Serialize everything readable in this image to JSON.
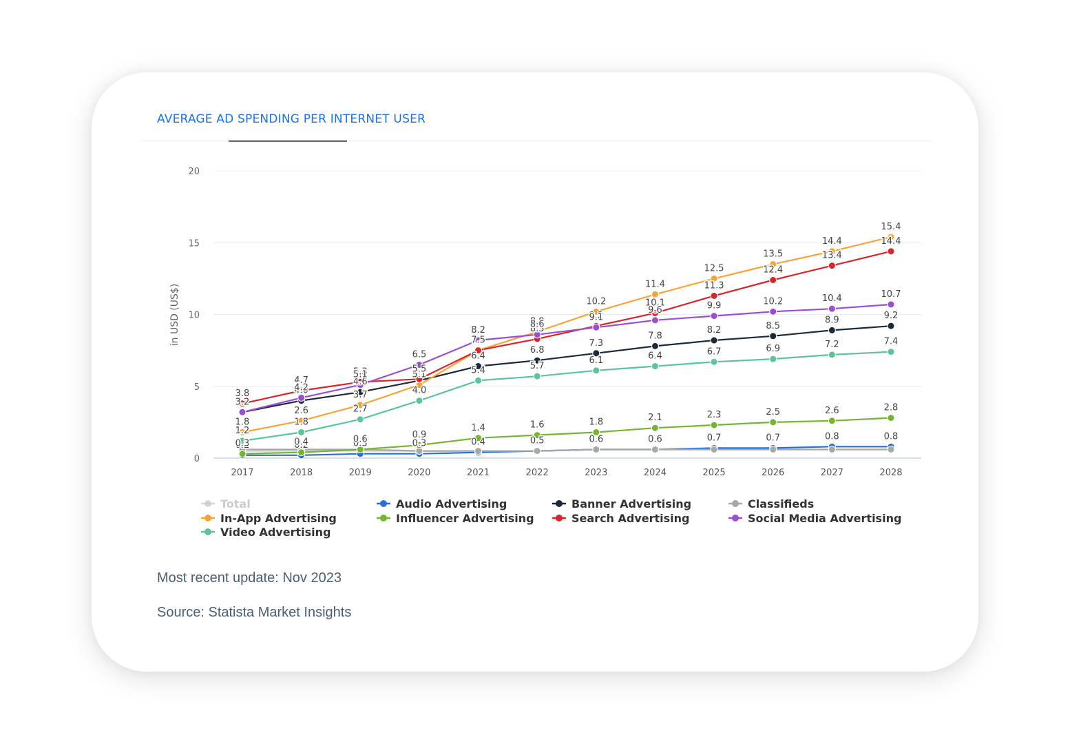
{
  "header": {
    "tab_label": "AVERAGE AD SPENDING PER INTERNET USER"
  },
  "footer": {
    "update": "Most recent update: Nov 2023",
    "source": "Source: Statista Market Insights"
  },
  "chart_data": {
    "type": "line",
    "title": "",
    "xlabel": "",
    "ylabel": "in USD (US$)",
    "ylim": [
      0,
      20
    ],
    "yticks": [
      0,
      5,
      10,
      15,
      20
    ],
    "categories": [
      "2017",
      "2018",
      "2019",
      "2020",
      "2021",
      "2022",
      "2023",
      "2024",
      "2025",
      "2026",
      "2027",
      "2028"
    ],
    "grid": true,
    "legend": "bottom",
    "series": [
      {
        "name": "Total",
        "color": "#c8c8c8",
        "faded": true,
        "values": [
          0.5,
          0.5,
          0.5,
          0.5,
          0.5,
          0.5,
          0.6,
          0.6,
          0.6,
          0.6,
          0.6,
          0.6
        ],
        "labels": false
      },
      {
        "name": "Audio Advertising",
        "color": "#2b6fd6",
        "values": [
          0.2,
          0.2,
          0.3,
          0.3,
          0.4,
          0.5,
          0.6,
          0.6,
          0.7,
          0.7,
          0.8,
          0.8
        ],
        "labels": true
      },
      {
        "name": "Banner Advertising",
        "color": "#1c2b3a",
        "values": [
          3.2,
          4.0,
          4.6,
          5.4,
          6.4,
          6.8,
          7.3,
          7.8,
          8.2,
          8.5,
          8.9,
          9.2
        ],
        "labels": true
      },
      {
        "name": "Classifieds",
        "color": "#a8a8a8",
        "values": [
          0.6,
          0.6,
          0.6,
          0.5,
          0.5,
          0.5,
          0.6,
          0.6,
          0.6,
          0.6,
          0.6,
          0.6
        ],
        "labels": false
      },
      {
        "name": "In-App Advertising",
        "color": "#f7a436",
        "values": [
          1.8,
          2.6,
          3.7,
          5.1,
          7.5,
          8.8,
          10.2,
          11.4,
          12.5,
          13.5,
          14.4,
          15.4
        ],
        "labels": true
      },
      {
        "name": "Influencer Advertising",
        "color": "#74b72e",
        "values": [
          0.3,
          0.4,
          0.6,
          0.9,
          1.4,
          1.6,
          1.8,
          2.1,
          2.3,
          2.5,
          2.6,
          2.8
        ],
        "labels": true
      },
      {
        "name": "Search Advertising",
        "color": "#d9252a",
        "values": [
          3.8,
          4.7,
          5.3,
          5.5,
          7.5,
          8.3,
          9.2,
          10.1,
          11.3,
          12.4,
          13.4,
          14.4
        ],
        "labels": true
      },
      {
        "name": "Social Media Advertising",
        "color": "#9b4fd0",
        "values": [
          3.2,
          4.2,
          5.1,
          6.5,
          8.2,
          8.6,
          9.1,
          9.6,
          9.9,
          10.2,
          10.4,
          10.7
        ],
        "labels": true
      },
      {
        "name": "Video Advertising",
        "color": "#5cc49a",
        "values": [
          1.2,
          1.8,
          2.7,
          4.0,
          5.4,
          5.7,
          6.1,
          6.4,
          6.7,
          6.9,
          7.2,
          7.4
        ],
        "labels": true
      }
    ]
  }
}
